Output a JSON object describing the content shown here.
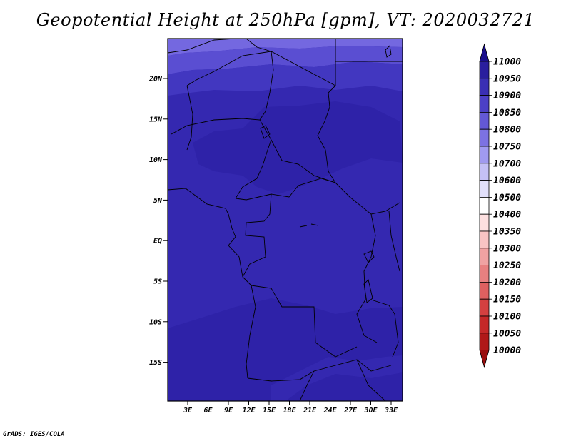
{
  "title": "Geopotential Height at 250hPa [gpm], VT: 2020032721",
  "footer": "GrADS: IGES/COLA",
  "map": {
    "lat_labels": [
      "20N",
      "15N",
      "10N",
      "5N",
      "EQ",
      "5S",
      "10S",
      "15S"
    ],
    "lon_labels": [
      "3E",
      "6E",
      "9E",
      "12E",
      "15E",
      "18E",
      "21E",
      "24E",
      "27E",
      "30E",
      "33E"
    ],
    "field_colors": {
      "c10950": "#2e22a8",
      "c10900": "#3428b0",
      "c10850": "#4237c0",
      "c10800": "#5a4ed2",
      "c10750": "#7468e0"
    }
  },
  "colorbar": {
    "labels": [
      "11000",
      "10950",
      "10900",
      "10850",
      "10800",
      "10750",
      "10700",
      "10600",
      "10500",
      "10400",
      "10350",
      "10300",
      "10250",
      "10200",
      "10150",
      "10100",
      "10050",
      "10000"
    ],
    "colors": [
      "#1a0f8c",
      "#2a1e9e",
      "#3a2fb4",
      "#4c40c6",
      "#6358d6",
      "#7c72e2",
      "#a09af0",
      "#c4c0f6",
      "#e2e0fb",
      "#ffffff",
      "#fde0e0",
      "#f8c4c4",
      "#f0a2a2",
      "#e88080",
      "#de6060",
      "#d44040",
      "#c42828",
      "#b01818",
      "#9a0e0e"
    ]
  }
}
